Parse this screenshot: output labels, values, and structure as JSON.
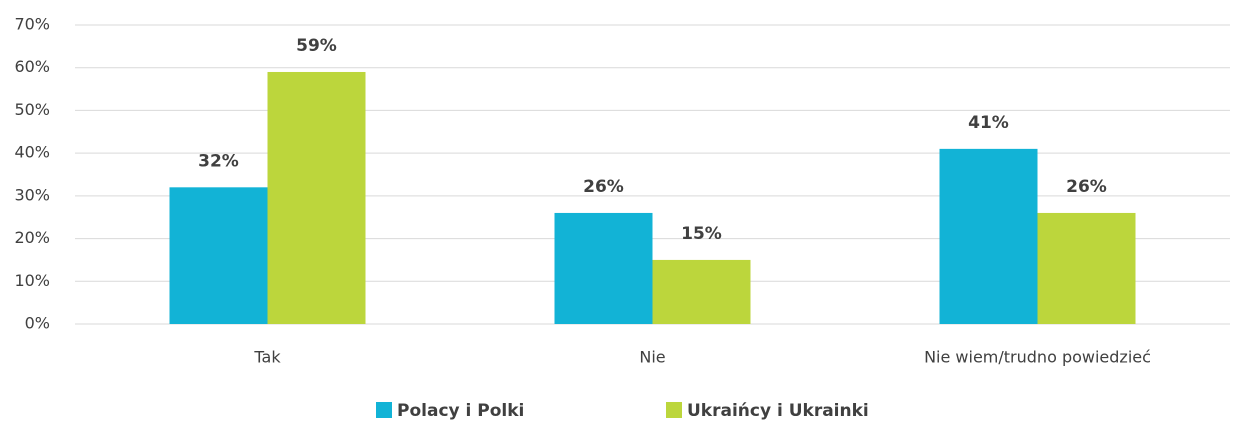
{
  "chart_data": {
    "type": "bar",
    "categories": [
      "Tak",
      "Nie",
      "Nie wiem/trudno powiedzieć"
    ],
    "series": [
      {
        "name": "Polacy i Polki",
        "color": "#12b3d6",
        "values": [
          32,
          26,
          41
        ],
        "value_labels": [
          "32%",
          "26%",
          "41%"
        ]
      },
      {
        "name": "Ukraińcy i Ukrainki",
        "color": "#bcd63c",
        "values": [
          59,
          15,
          26
        ],
        "value_labels": [
          "59%",
          "15%",
          "26%"
        ]
      }
    ],
    "ylim": [
      0,
      70
    ],
    "yticks": [
      {
        "value": 0,
        "label": "0%"
      },
      {
        "value": 10,
        "label": "10%"
      },
      {
        "value": 20,
        "label": "20%"
      },
      {
        "value": 30,
        "label": "30%"
      },
      {
        "value": 40,
        "label": "40%"
      },
      {
        "value": 50,
        "label": "50%"
      },
      {
        "value": 60,
        "label": "60%"
      },
      {
        "value": 70,
        "label": "70%"
      }
    ],
    "grid": true,
    "legend": "bottom"
  }
}
